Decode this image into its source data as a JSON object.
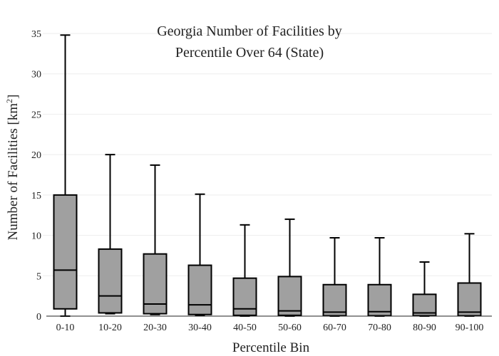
{
  "chart_data": {
    "type": "box",
    "title_lines": [
      "Georgia Number of Facilities by",
      "Percentile Over 64 (State)"
    ],
    "xlabel": "Percentile Bin",
    "ylabel_main": "Number of Facilities  [km",
    "ylabel_sup": "2",
    "ylabel_end": "]",
    "ylim": [
      0,
      35
    ],
    "yticks": [
      0,
      5,
      10,
      15,
      20,
      25,
      30,
      35
    ],
    "grid": true,
    "categories": [
      "0-10",
      "10-20",
      "20-30",
      "30-40",
      "40-50",
      "50-60",
      "60-70",
      "70-80",
      "80-90",
      "90-100"
    ],
    "boxes": [
      {
        "min": 0,
        "q1": 0.9,
        "median": 5.7,
        "q3": 15.0,
        "max": 34.8
      },
      {
        "min": 0.3,
        "q1": 0.4,
        "median": 2.5,
        "q3": 8.3,
        "max": 20.0
      },
      {
        "min": 0.2,
        "q1": 0.3,
        "median": 1.5,
        "q3": 7.7,
        "max": 18.7
      },
      {
        "min": 0.1,
        "q1": 0.2,
        "median": 1.4,
        "q3": 6.3,
        "max": 15.1
      },
      {
        "min": 0,
        "q1": 0.1,
        "median": 0.9,
        "q3": 4.7,
        "max": 11.3
      },
      {
        "min": 0,
        "q1": 0.1,
        "median": 0.65,
        "q3": 4.9,
        "max": 12.0
      },
      {
        "min": 0,
        "q1": 0.05,
        "median": 0.5,
        "q3": 3.9,
        "max": 9.7
      },
      {
        "min": 0,
        "q1": 0.05,
        "median": 0.55,
        "q3": 3.9,
        "max": 9.7
      },
      {
        "min": 0,
        "q1": 0.05,
        "median": 0.4,
        "q3": 2.7,
        "max": 6.7
      },
      {
        "min": 0,
        "q1": 0.05,
        "median": 0.5,
        "q3": 4.1,
        "max": 10.2
      }
    ]
  }
}
